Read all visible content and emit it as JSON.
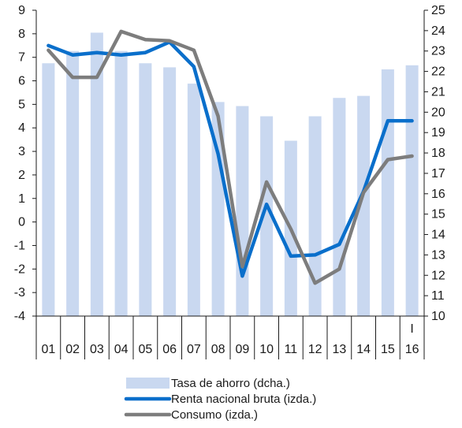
{
  "chart_data": {
    "type": "bar+line",
    "categories": [
      "01",
      "02",
      "03",
      "04",
      "05",
      "06",
      "07",
      "08",
      "09",
      "10",
      "11",
      "12",
      "13",
      "14",
      "15",
      "16"
    ],
    "category_sublabels": {
      "16": "I"
    },
    "left_axis": {
      "ylim": [
        -4,
        9
      ],
      "ticks": [
        9,
        8,
        7,
        6,
        5,
        4,
        3,
        2,
        1,
        0,
        -1,
        -2,
        -3,
        -4
      ]
    },
    "right_axis": {
      "ylim": [
        10,
        25
      ],
      "ticks": [
        25,
        24,
        23,
        22,
        21,
        20,
        19,
        18,
        17,
        16,
        15,
        14,
        13,
        12,
        11,
        10
      ]
    },
    "series": [
      {
        "name": "Tasa de ahorro (dcha.)",
        "kind": "bar",
        "axis": "right",
        "color": "#c9d8f0",
        "values": [
          22.4,
          23.0,
          23.9,
          23.0,
          22.4,
          22.2,
          21.4,
          20.5,
          20.3,
          19.8,
          18.6,
          19.8,
          20.7,
          20.8,
          22.1,
          22.3
        ]
      },
      {
        "name": "Renta nacional bruta (izda.)",
        "kind": "line",
        "axis": "left",
        "color": "#0a6fcb",
        "values": [
          7.5,
          7.1,
          7.2,
          7.1,
          7.2,
          7.65,
          6.6,
          2.9,
          -2.3,
          0.75,
          -1.45,
          -1.4,
          -0.95,
          1.3,
          4.3,
          4.3
        ]
      },
      {
        "name": "Consumo (izda.)",
        "kind": "line",
        "axis": "left",
        "color": "#7d7d7d",
        "values": [
          7.3,
          6.15,
          6.15,
          8.1,
          7.75,
          7.7,
          7.3,
          4.5,
          -1.9,
          1.7,
          -0.3,
          -2.6,
          -2.0,
          1.25,
          2.65,
          2.8
        ]
      }
    ]
  }
}
